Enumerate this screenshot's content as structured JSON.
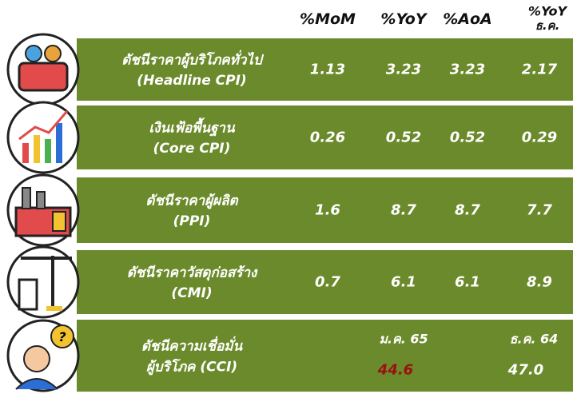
{
  "header": {
    "columns": [
      "%MoM",
      "%YoY",
      "%AoA",
      {
        "text": "%YoY",
        "sub": "ธ.ค."
      }
    ]
  },
  "rows": [
    {
      "label": [
        "ดัชนีราคาผู้บริโภคทั่วไป",
        "(Headline CPI)"
      ],
      "values": [
        "1.13",
        "3.23",
        "3.23",
        "2.17"
      ]
    },
    {
      "label": [
        "เงินเฟ้อพื้นฐาน",
        "(Core CPI)"
      ],
      "values": [
        "0.26",
        "0.52",
        "0.52",
        "0.29"
      ]
    },
    {
      "label": [
        "ดัชนีราคาผู้ผลิต",
        "(PPI)"
      ],
      "values": [
        "1.6",
        "8.7",
        "8.7",
        "7.7"
      ]
    },
    {
      "label": [
        "ดัชนีราคาวัสดุก่อสร้าง",
        "(CMI)"
      ],
      "values": [
        "0.7",
        "6.1",
        "6.1",
        "8.9"
      ]
    }
  ],
  "cci": {
    "label": [
      "ดัชนีความเชื่อมั่น",
      "ผู้บริโภค (CCI)"
    ],
    "periods": [
      "ม.ค. 65",
      "ธ.ค. 64"
    ],
    "values": [
      "44.6",
      "47.0"
    ]
  }
}
